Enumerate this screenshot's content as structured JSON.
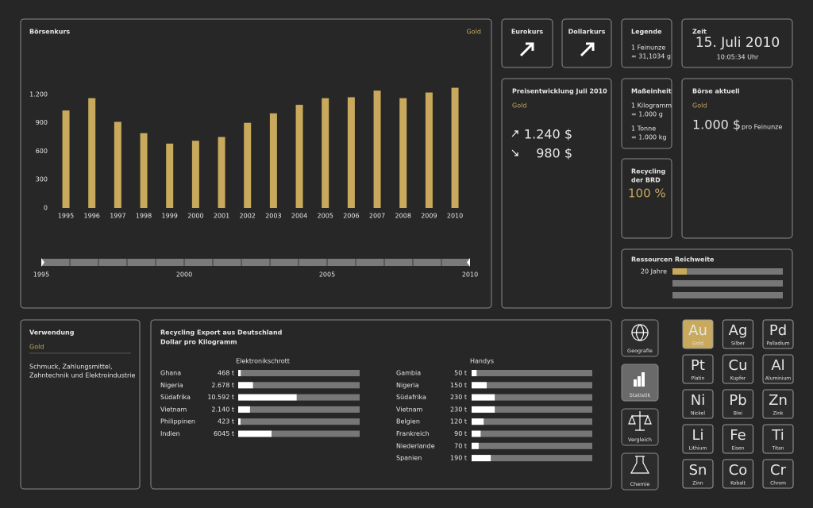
{
  "chart_data": [
    {
      "type": "bar",
      "title": "Börsenkurs",
      "categories": [
        "1995",
        "1996",
        "1997",
        "1998",
        "1999",
        "2000",
        "2001",
        "2002",
        "2003",
        "2004",
        "2005",
        "2006",
        "2007",
        "2008",
        "2009",
        "2010"
      ],
      "series": [
        {
          "name": "Gold",
          "color": "#c9a95c",
          "values": [
            1030,
            1160,
            910,
            790,
            680,
            710,
            750,
            900,
            1000,
            1090,
            1160,
            1170,
            1240,
            1160,
            1220,
            1270
          ]
        }
      ],
      "ylim": [
        0,
        1300
      ],
      "yticks": [
        0,
        300,
        600,
        900,
        {
          "value": 1200,
          "label": "1.200"
        }
      ]
    },
    {
      "type": "hbar",
      "title": "Elektronikschrott",
      "categories": [
        "Ghana",
        "Nigeria",
        "Südafrika",
        "Vietnam",
        "Philippinen",
        "Indien"
      ],
      "values": [
        468,
        2678,
        10592,
        2140,
        423,
        6045
      ],
      "value_labels": [
        "468 t",
        "2.678 t",
        "10.592 t",
        "2.140 t",
        "423 t",
        "6045 t"
      ],
      "color": "#ffffff",
      "xlim": [
        0,
        22000
      ]
    },
    {
      "type": "hbar",
      "title": "Handys",
      "categories": [
        "Gambia",
        "Nigeria",
        "Südafrika",
        "Vietnam",
        "Belgien",
        "Frankreich",
        "Niederlande",
        "Spanien"
      ],
      "values": [
        50,
        150,
        230,
        230,
        120,
        90,
        70,
        190
      ],
      "value_labels": [
        "50 t",
        "150 t",
        "230 t",
        "230 t",
        "120 t",
        "90 t",
        "70 t",
        "190 t"
      ],
      "color": "#ffffff",
      "xlim": [
        0,
        1200
      ]
    }
  ],
  "timeline": {
    "labels": [
      "1995",
      "2000",
      "2005",
      "2010"
    ]
  },
  "eurokurs": {
    "title": "Eurokurs"
  },
  "dollarkurs": {
    "title": "Dollarkurs"
  },
  "legende": {
    "title": "Legende",
    "lines": [
      "1 Feinunze",
      "= 31,1034 g"
    ]
  },
  "zeit": {
    "title": "Zeit",
    "date": "15. Juli 2010",
    "time": "10:05:34 Uhr"
  },
  "preisentwicklung": {
    "title": "Preisentwicklung Juli 2010",
    "metal": "Gold",
    "high": "1.240 $",
    "low": "980 $"
  },
  "masseinheit": {
    "title": "Maßeinheit",
    "lines": [
      "1 Kilogramm",
      "= 1.000 g",
      "1 Tonne",
      "= 1.000 kg"
    ]
  },
  "recycling_brd": {
    "title_lines": [
      "Recycling",
      "der BRD"
    ],
    "value": "100 %"
  },
  "boerse_aktuell": {
    "title": "Börse aktuell",
    "metal": "Gold",
    "price": "1.000 $",
    "unit": "pro Feinunze"
  },
  "ressourcen": {
    "title": "Ressourcen Reichweite",
    "label": "20 Jahre"
  },
  "verwendung": {
    "title": "Verwendung",
    "metal": "Gold",
    "text_lines": [
      "Schmuck, Zahlungsmittel,",
      "Zahntechnik und Elektroindustrie"
    ]
  },
  "export": {
    "title_lines": [
      "Recycling Export aus Deutschland",
      "Dollar pro Kilogramm"
    ]
  },
  "nav": [
    "Geografie",
    "Statistik",
    "Vergleich",
    "Chemie"
  ],
  "elements": [
    {
      "symbol": "Au",
      "name": "Gold"
    },
    {
      "symbol": "Ag",
      "name": "Silber"
    },
    {
      "symbol": "Pd",
      "name": "Palladium"
    },
    {
      "symbol": "Pt",
      "name": "Platin"
    },
    {
      "symbol": "Cu",
      "name": "Kupfer"
    },
    {
      "symbol": "Al",
      "name": "Aluminium"
    },
    {
      "symbol": "Ni",
      "name": "Nickel"
    },
    {
      "symbol": "Pb",
      "name": "Blei"
    },
    {
      "symbol": "Zn",
      "name": "Zink"
    },
    {
      "symbol": "Li",
      "name": "Lithium"
    },
    {
      "symbol": "Fe",
      "name": "Eisen"
    },
    {
      "symbol": "Ti",
      "name": "Titan"
    },
    {
      "symbol": "Sn",
      "name": "Zinn"
    },
    {
      "symbol": "Co",
      "name": "Kobalt"
    },
    {
      "symbol": "Cr",
      "name": "Chrom"
    }
  ]
}
